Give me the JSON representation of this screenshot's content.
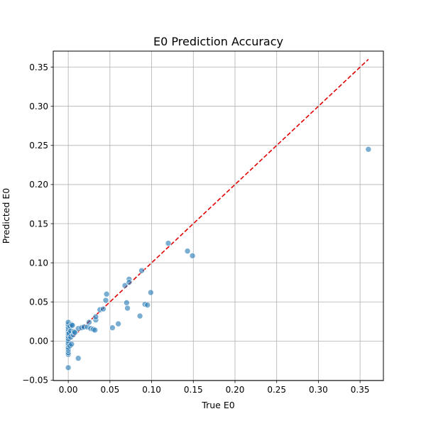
{
  "chart_data": {
    "type": "scatter",
    "title": "E0 Prediction Accuracy",
    "xlabel": "True E0",
    "ylabel": "Predicted E0",
    "xlim": [
      -0.018,
      0.378
    ],
    "ylim": [
      -0.0505,
      0.3705
    ],
    "xticks": [
      0.0,
      0.05,
      0.1,
      0.15,
      0.2,
      0.25,
      0.3,
      0.35
    ],
    "xtick_labels": [
      "0.00",
      "0.05",
      "0.10",
      "0.15",
      "0.20",
      "0.25",
      "0.30",
      "0.35"
    ],
    "yticks": [
      -0.05,
      0.0,
      0.05,
      0.1,
      0.15,
      0.2,
      0.25,
      0.3,
      0.35
    ],
    "ytick_labels": [
      "−0.05",
      "0.00",
      "0.05",
      "0.10",
      "0.15",
      "0.20",
      "0.25",
      "0.30",
      "0.35"
    ],
    "grid": true,
    "point_color": "#1f77b4",
    "line_color": "#e00000",
    "reference_line": {
      "style": "dashed",
      "x": [
        0.0,
        0.36
      ],
      "y": [
        0.0,
        0.36
      ]
    },
    "points": [
      [
        0.0,
        -0.034
      ],
      [
        0.0,
        -0.017
      ],
      [
        0.0,
        -0.015
      ],
      [
        0.0,
        -0.012
      ],
      [
        0.0,
        -0.01
      ],
      [
        0.0,
        -0.008
      ],
      [
        0.0,
        -0.005
      ],
      [
        0.0,
        -0.003
      ],
      [
        0.0,
        0.0
      ],
      [
        0.0,
        0.003
      ],
      [
        0.0,
        0.006
      ],
      [
        0.0,
        0.009
      ],
      [
        0.0,
        0.012
      ],
      [
        0.0,
        0.015
      ],
      [
        0.0,
        0.018
      ],
      [
        0.0,
        0.021
      ],
      [
        0.0,
        0.024
      ],
      [
        0.001,
        0.01
      ],
      [
        0.002,
        -0.006
      ],
      [
        0.002,
        0.019
      ],
      [
        0.003,
        0.005
      ],
      [
        0.003,
        0.013
      ],
      [
        0.004,
        -0.004
      ],
      [
        0.004,
        0.021
      ],
      [
        0.005,
        0.02
      ],
      [
        0.006,
        0.008
      ],
      [
        0.007,
        0.012
      ],
      [
        0.008,
        0.011
      ],
      [
        0.012,
        0.016
      ],
      [
        0.012,
        -0.022
      ],
      [
        0.016,
        0.017
      ],
      [
        0.019,
        0.018
      ],
      [
        0.023,
        0.018
      ],
      [
        0.025,
        0.024
      ],
      [
        0.027,
        0.016
      ],
      [
        0.03,
        0.015
      ],
      [
        0.032,
        0.014
      ],
      [
        0.033,
        0.027
      ],
      [
        0.033,
        0.031
      ],
      [
        0.038,
        0.04
      ],
      [
        0.042,
        0.041
      ],
      [
        0.045,
        0.052
      ],
      [
        0.046,
        0.06
      ],
      [
        0.053,
        0.017
      ],
      [
        0.06,
        0.022
      ],
      [
        0.068,
        0.071
      ],
      [
        0.07,
        0.049
      ],
      [
        0.071,
        0.042
      ],
      [
        0.073,
        0.079
      ],
      [
        0.073,
        0.075
      ],
      [
        0.086,
        0.032
      ],
      [
        0.088,
        0.09
      ],
      [
        0.092,
        0.047
      ],
      [
        0.095,
        0.046
      ],
      [
        0.099,
        0.062
      ],
      [
        0.12,
        0.125
      ],
      [
        0.143,
        0.115
      ],
      [
        0.149,
        0.109
      ],
      [
        0.36,
        0.245
      ]
    ]
  }
}
